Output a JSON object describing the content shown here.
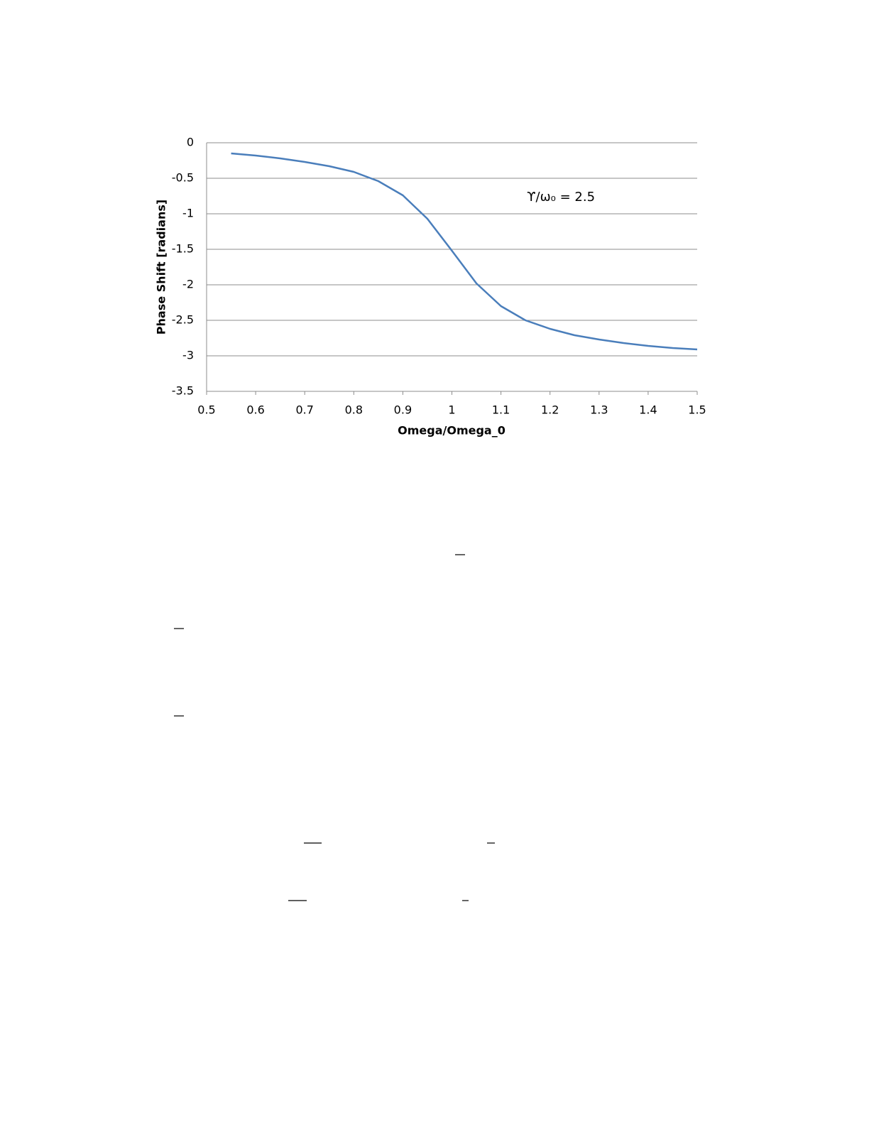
{
  "chart_data": {
    "type": "line",
    "x_label": "Omega/Omega_0",
    "y_label": "Phase Shift [radians]",
    "annotation": "ϒ/ω₀ = 2.5",
    "x": [
      0.55,
      0.6,
      0.65,
      0.7,
      0.75,
      0.8,
      0.85,
      0.9,
      0.95,
      1.0,
      1.05,
      1.1,
      1.15,
      1.2,
      1.25,
      1.3,
      1.35,
      1.4,
      1.45,
      1.5
    ],
    "values": [
      -0.15,
      -0.18,
      -0.22,
      -0.27,
      -0.33,
      -0.41,
      -0.54,
      -0.74,
      -1.07,
      -1.52,
      -1.98,
      -2.3,
      -2.5,
      -2.62,
      -2.71,
      -2.77,
      -2.82,
      -2.86,
      -2.89,
      -2.91
    ],
    "color": "#4a7ebb",
    "xlim": [
      0.5,
      1.5
    ],
    "xticks": [
      0.5,
      0.6,
      0.7,
      0.8,
      0.9,
      1,
      1.1,
      1.2,
      1.3,
      1.4,
      1.5
    ],
    "ylim": [
      -3.5,
      0
    ],
    "yticks": [
      0,
      -0.5,
      -1,
      -1.5,
      -2,
      -2.5,
      -3,
      -3.5
    ],
    "grid": true
  }
}
